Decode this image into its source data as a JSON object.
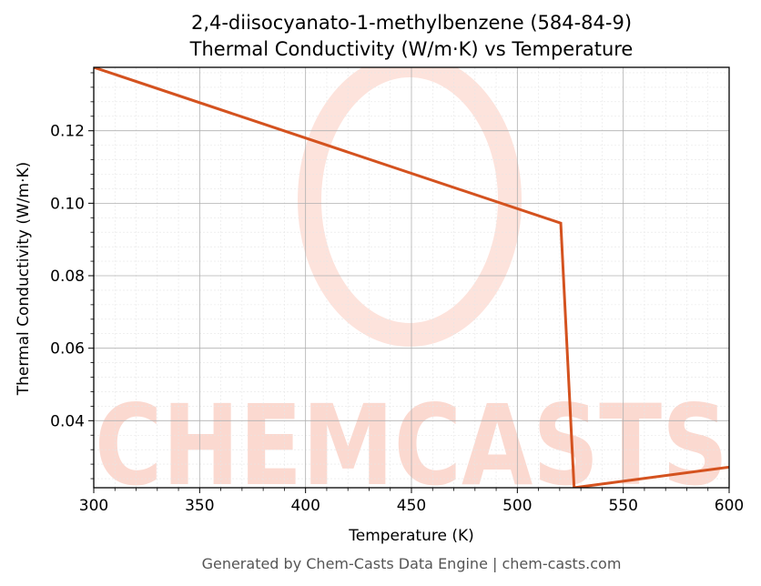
{
  "chart_data": {
    "type": "line",
    "title": "2,4-diisocyanato-1-methylbenzene (584-84-9)",
    "subtitle": "Thermal Conductivity (W/m·K) vs Temperature",
    "xlabel": "Temperature (K)",
    "ylabel": "Thermal Conductivity (W/m·K)",
    "xlim": [
      300,
      600
    ],
    "ylim": [
      0.0215,
      0.1375
    ],
    "xticks": [
      300,
      350,
      400,
      450,
      500,
      550,
      600
    ],
    "yticks": [
      0.04,
      0.06,
      0.08,
      0.1,
      0.12
    ],
    "xtick_labels": [
      "300",
      "350",
      "400",
      "450",
      "500",
      "550",
      "600"
    ],
    "ytick_labels": [
      "0.04",
      "0.06",
      "0.08",
      "0.10",
      "0.12"
    ],
    "grid": true,
    "line_color": "#d4521f",
    "series": [
      {
        "x": [
          300,
          520.5,
          526.8,
          600
        ],
        "y": [
          0.1375,
          0.0945,
          0.0215,
          0.0272
        ]
      }
    ]
  },
  "watermark": {
    "text": "CHEMCASTS",
    "color": "#fbd9d0"
  },
  "footer": "Generated by Chem-Casts Data Engine | chem-casts.com"
}
